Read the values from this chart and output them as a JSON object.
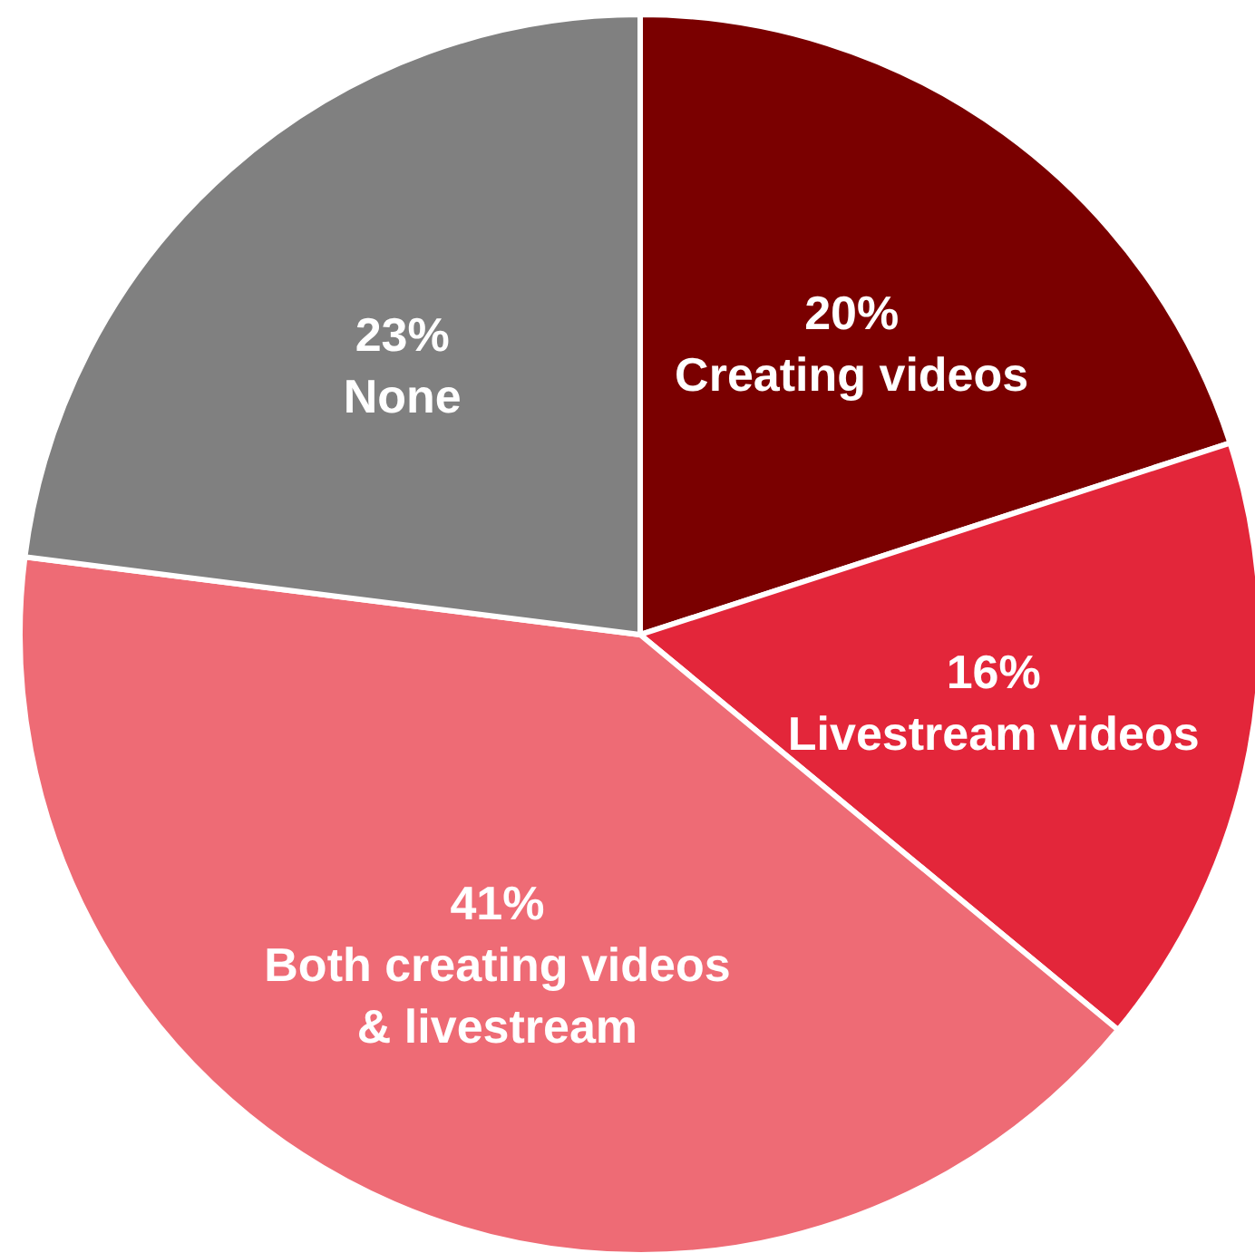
{
  "chart_data": {
    "type": "pie",
    "categories": [
      "Creating videos",
      "Livestream videos",
      "Both creating videos & livestream",
      "None"
    ],
    "values": [
      20,
      16,
      41,
      23
    ],
    "colors": [
      "#7a0000",
      "#e3263a",
      "#ee6b75",
      "#808080"
    ],
    "value_labels": [
      "20%",
      "16%",
      "41%",
      "23%"
    ]
  }
}
